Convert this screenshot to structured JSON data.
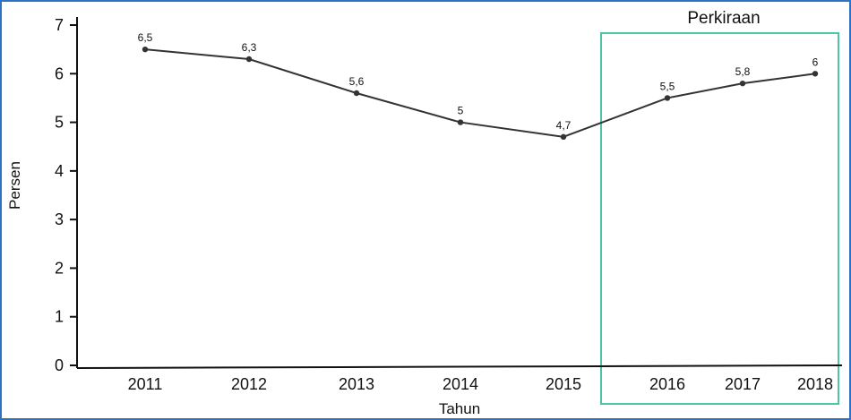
{
  "chart_data": {
    "type": "line",
    "x": [
      "2011",
      "2012",
      "2013",
      "2014",
      "2015",
      "2016",
      "2017",
      "2018"
    ],
    "series": [
      {
        "values": [
          6.5,
          6.3,
          5.6,
          5,
          4.7,
          5.5,
          5.8,
          6
        ],
        "labels": [
          "6,5",
          "6,3",
          "5,6",
          "5",
          "4,7",
          "5,5",
          "5,8",
          "6"
        ]
      }
    ],
    "xlabel": "Tahun",
    "ylabel": "Persen",
    "ylim": [
      0,
      7
    ],
    "yticks": [
      "0",
      "1",
      "2",
      "3",
      "4",
      "5",
      "6",
      "7"
    ],
    "forecast_label": "Perkiraan",
    "forecast_start": "2016",
    "colors": {
      "line": "#333333",
      "forecast_box": "#4fc4a4",
      "frame": "#2f72c4"
    }
  }
}
